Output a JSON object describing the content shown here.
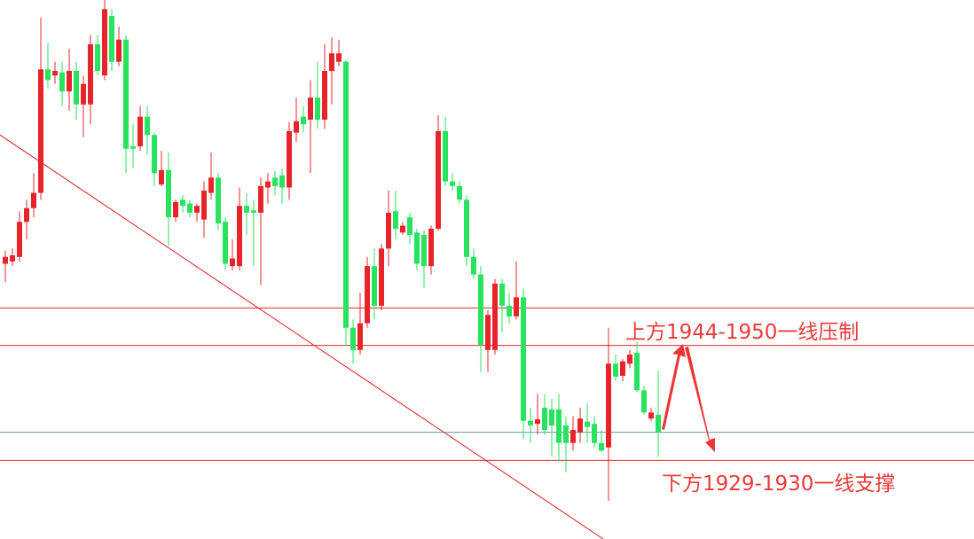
{
  "chart_data": {
    "type": "candlestick",
    "up_color": "#e8242b",
    "down_color": "#27e35f",
    "open": [
      1955.8,
      1956.1,
      1956.7,
      1961.3,
      1963.1,
      1965.1,
      1981.3,
      1980.5,
      1980.9,
      1978.4,
      1981.1,
      1976.7,
      1976.7,
      1984.6,
      1980.5,
      1988.3,
      1982.3,
      1985.2,
      1971.2,
      1971.2,
      1975.1,
      1972.7,
      1966.2,
      1968.1,
      1961.9,
      1964.2,
      1963.7,
      1962.5,
      1961.6,
      1965.1,
      1967.1,
      1961.3,
      1955.5,
      1955.5,
      1963.4,
      1962.8,
      1962.5,
      1965.8,
      1967.1,
      1967.4,
      1965.8,
      1973.0,
      1975.1,
      1974.7,
      1977.6,
      1974.7,
      1981.1,
      1982.3,
      1982.3,
      1947.4,
      1944.5,
      1948.0,
      1955.5,
      1950.3,
      1957.8,
      1962.7,
      1959.9,
      1961.9,
      1959.9,
      1959.6,
      1955.5,
      1960.4,
      1973.2,
      1966.6,
      1966.0,
      1964.2,
      1956.7,
      1954.4,
      1944.5,
      1944.5,
      1953.2,
      1950.3,
      1948.9,
      1951.4,
      1935.2,
      1934.8,
      1936.9,
      1936.7,
      1936.7,
      1934.6,
      1932.3,
      1933.7,
      1935.1,
      1934.8,
      1932.3,
      1931.7,
      1942.7,
      1941.1,
      1942.7,
      1944.1,
      1939.2,
      1935.5,
      1936.0
    ],
    "high": [
      1957.5,
      1957.8,
      1962.7,
      1964.2,
      1967.7,
      1988.1,
      1984.8,
      1982.3,
      1982.3,
      1984.0,
      1982.3,
      1980.5,
      1985.8,
      1985.8,
      1990.4,
      1989.2,
      1986.9,
      1985.8,
      1974.1,
      1976.5,
      1976.5,
      1973.0,
      1970.6,
      1970.4,
      1964.2,
      1964.8,
      1964.2,
      1963.7,
      1966.6,
      1970.4,
      1967.7,
      1961.9,
      1959.0,
      1965.8,
      1965.1,
      1964.2,
      1967.1,
      1967.7,
      1968.0,
      1968.3,
      1974.4,
      1977.6,
      1976.5,
      1979.9,
      1982.3,
      1984.6,
      1985.5,
      1985.2,
      1982.5,
      1948.5,
      1952.0,
      1956.7,
      1957.8,
      1958.4,
      1965.4,
      1965.4,
      1961.3,
      1962.5,
      1960.4,
      1960.2,
      1960.8,
      1975.3,
      1975.1,
      1967.7,
      1966.6,
      1964.8,
      1957.8,
      1955.5,
      1949.7,
      1953.8,
      1953.8,
      1952.0,
      1956.1,
      1952.6,
      1936.9,
      1938.7,
      1938.7,
      1938.1,
      1938.7,
      1935.8,
      1935.8,
      1936.9,
      1937.5,
      1935.8,
      1934.0,
      1947.4,
      1943.9,
      1943.3,
      1944.5,
      1945.6,
      1939.8,
      1936.9,
      1941.8
    ],
    "low": [
      1953.4,
      1955.5,
      1956.1,
      1959.0,
      1961.9,
      1964.2,
      1978.8,
      1979.4,
      1976.5,
      1975.9,
      1974.7,
      1972.4,
      1974.1,
      1980.5,
      1979.9,
      1981.1,
      1981.7,
      1967.7,
      1968.3,
      1970.6,
      1970.1,
      1966.0,
      1966.0,
      1958.1,
      1961.3,
      1962.5,
      1961.9,
      1961.3,
      1959.2,
      1964.2,
      1960.2,
      1954.9,
      1954.9,
      1954.9,
      1959.6,
      1955.5,
      1953.0,
      1963.7,
      1964.8,
      1963.7,
      1964.2,
      1971.8,
      1973.0,
      1967.7,
      1973.5,
      1973.5,
      1976.7,
      1981.7,
      1945.1,
      1942.7,
      1943.9,
      1947.4,
      1948.5,
      1949.7,
      1955.5,
      1959.0,
      1959.6,
      1958.4,
      1954.9,
      1952.6,
      1954.4,
      1960.2,
      1966.0,
      1965.4,
      1963.7,
      1955.5,
      1953.8,
      1941.6,
      1941.6,
      1943.9,
      1946.8,
      1948.0,
      1948.5,
      1932.8,
      1932.3,
      1933.4,
      1933.4,
      1930.5,
      1929.9,
      1928.5,
      1931.3,
      1932.3,
      1932.3,
      1931.7,
      1931.1,
      1924.7,
      1940.4,
      1940.4,
      1942.1,
      1939.0,
      1936.0,
      1935.2,
      1930.5
    ],
    "close": [
      1956.7,
      1956.9,
      1961.3,
      1963.1,
      1965.1,
      1981.3,
      1979.9,
      1981.1,
      1978.4,
      1981.1,
      1976.7,
      1979.4,
      1984.6,
      1981.1,
      1989.2,
      1982.3,
      1985.2,
      1970.9,
      1970.9,
      1975.1,
      1972.7,
      1967.7,
      1968.1,
      1961.9,
      1963.9,
      1963.4,
      1962.5,
      1963.4,
      1965.4,
      1967.1,
      1961.1,
      1955.8,
      1956.5,
      1963.4,
      1962.5,
      1962.5,
      1966.0,
      1966.6,
      1966.0,
      1965.8,
      1973.2,
      1974.5,
      1974.1,
      1977.6,
      1974.7,
      1981.1,
      1983.4,
      1983.4,
      1947.4,
      1944.5,
      1948.0,
      1955.5,
      1950.3,
      1957.8,
      1962.5,
      1960.4,
      1960.8,
      1959.6,
      1955.8,
      1955.5,
      1960.4,
      1973.2,
      1966.6,
      1966.0,
      1964.2,
      1956.7,
      1954.4,
      1945.1,
      1949.1,
      1953.2,
      1950.3,
      1948.9,
      1951.4,
      1935.2,
      1934.6,
      1935.4,
      1934.0,
      1934.6,
      1932.3,
      1932.3,
      1934.0,
      1935.5,
      1934.4,
      1932.3,
      1931.3,
      1942.7,
      1941.0,
      1943.0,
      1943.9,
      1939.2,
      1936.3,
      1936.3,
      1933.7
    ],
    "ylim": [
      1919.7,
      1990.4
    ],
    "hlines": [
      {
        "value": 1950.0,
        "color": "#e8242b"
      },
      {
        "value": 1945.1,
        "color": "#e8242b"
      },
      {
        "value": 1933.7,
        "color": "#6f9c9c"
      },
      {
        "value": 1930.0,
        "color": "#e8242b"
      }
    ],
    "trendline": {
      "x": [
        -0.75,
        84.25
      ],
      "y": [
        1972.7,
        1919.7
      ],
      "color": "#d4262b"
    },
    "annotations": [
      "上方1944-1950一线压制",
      "下方1929-1930一线支撑"
    ]
  }
}
